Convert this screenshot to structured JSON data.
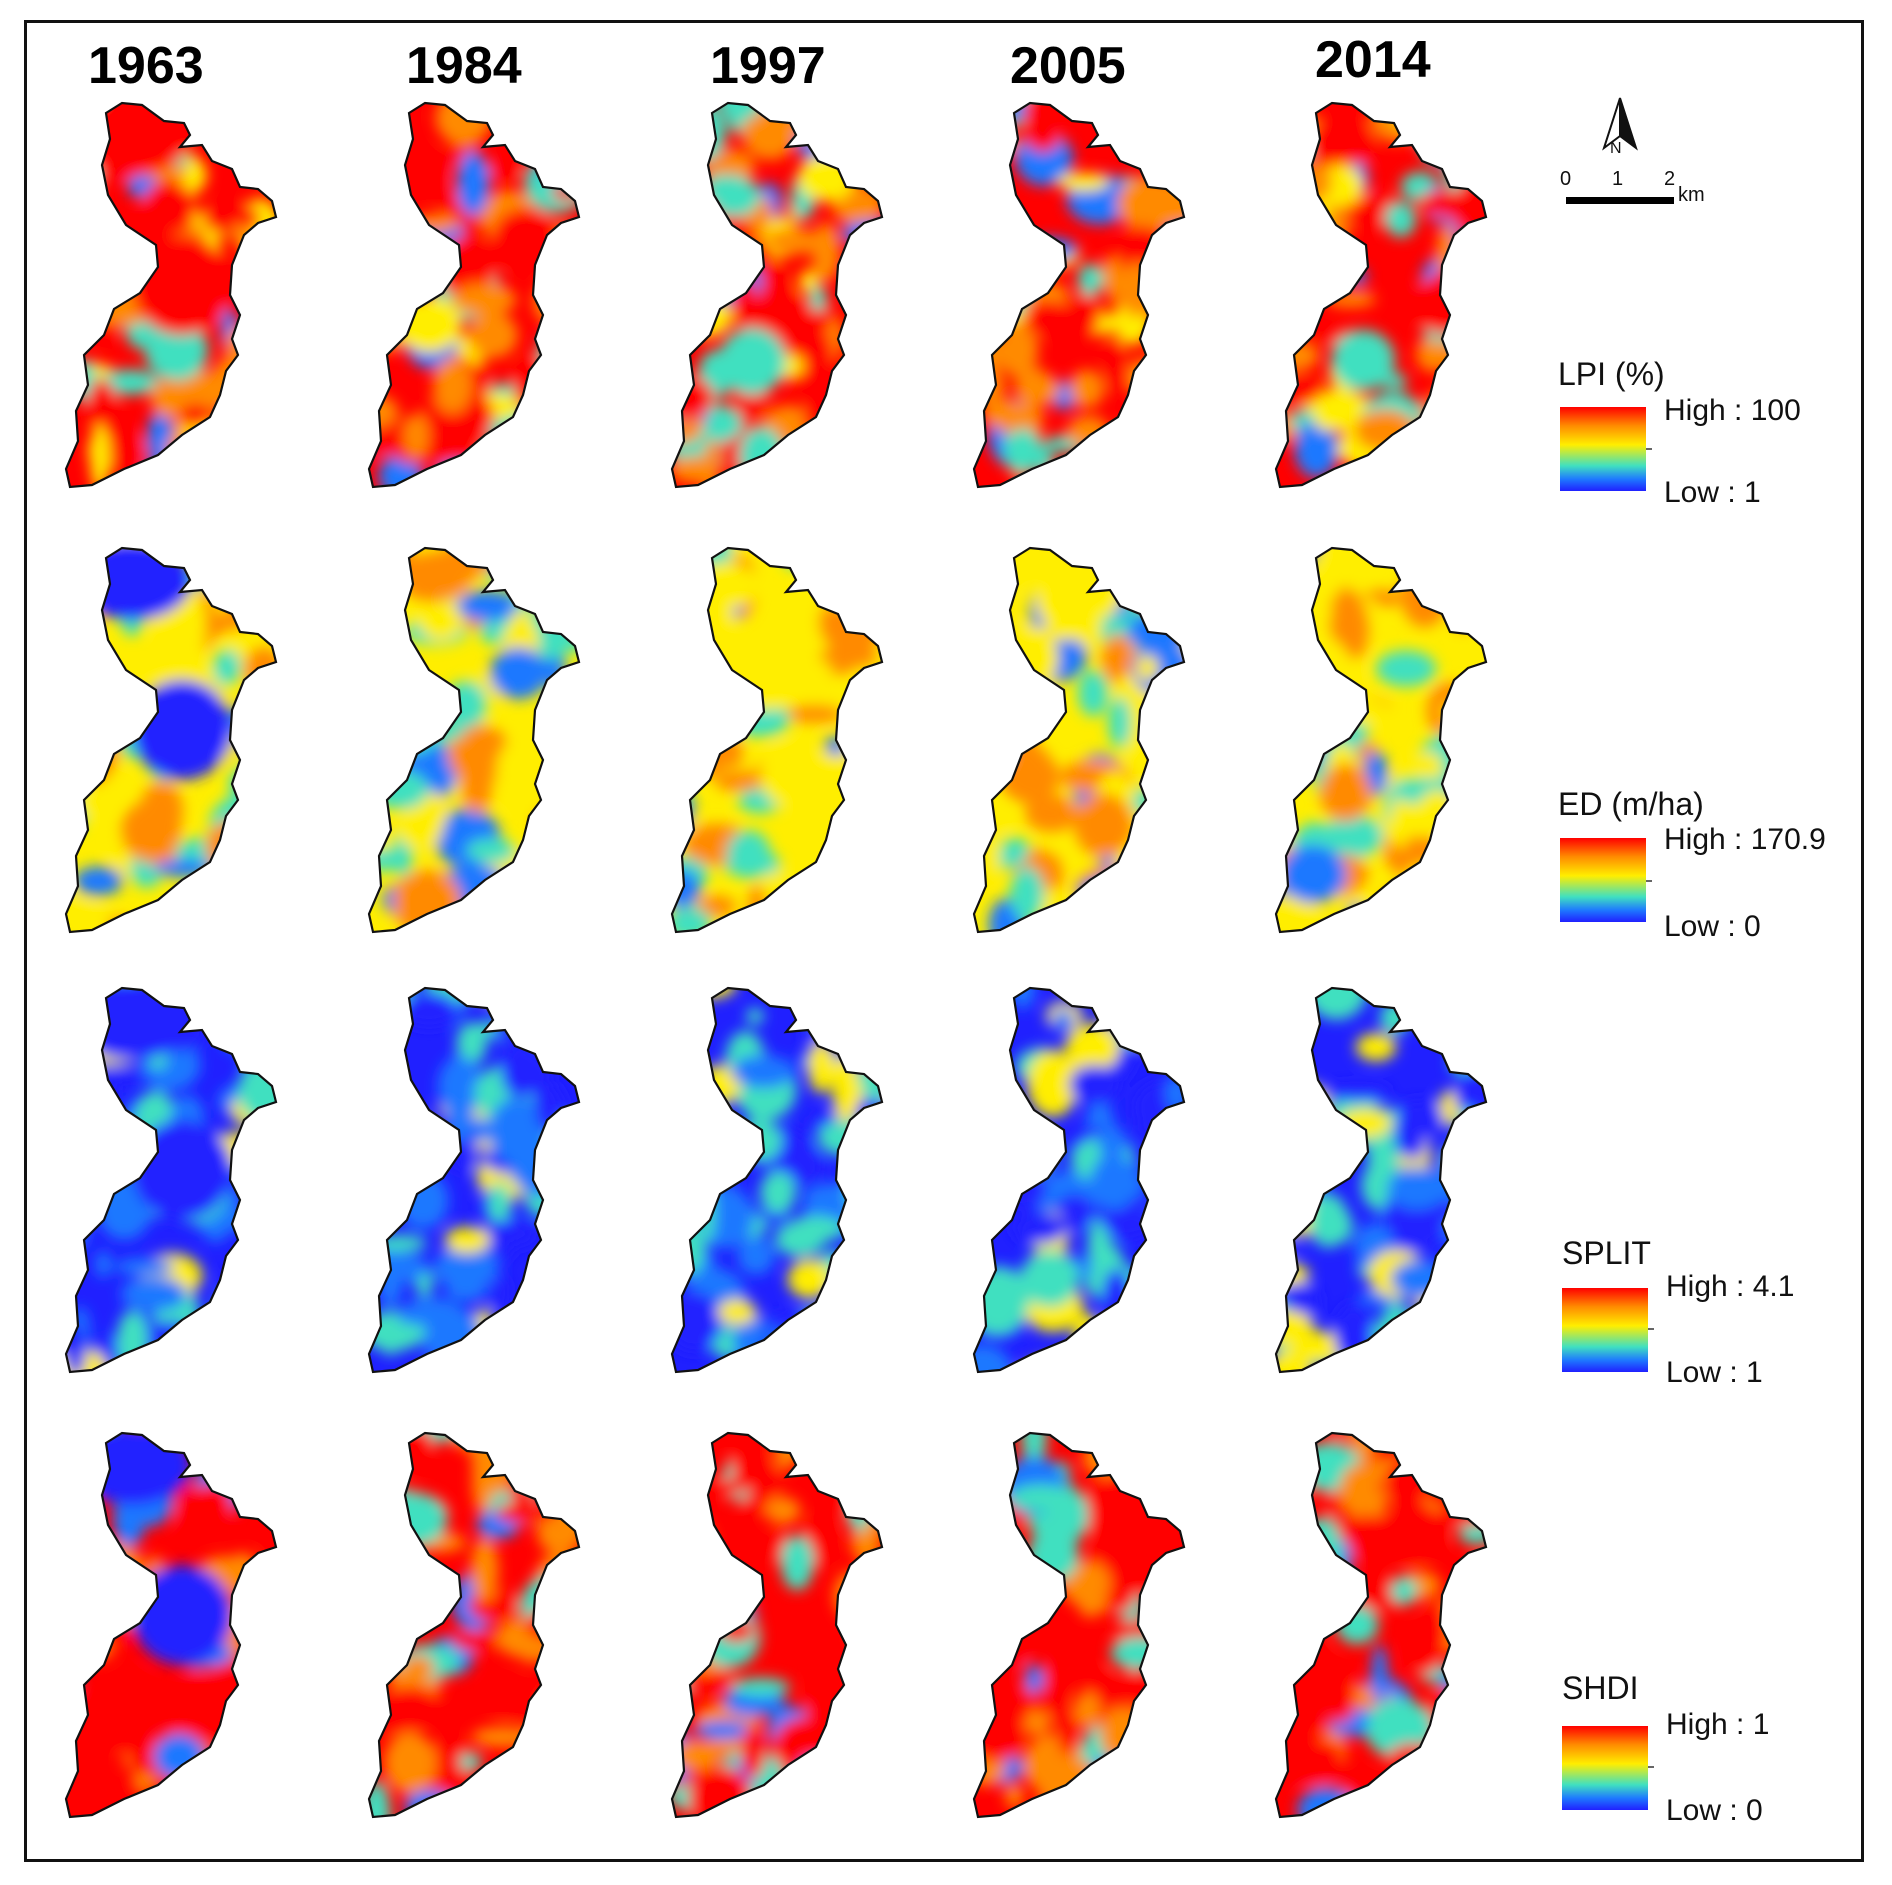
{
  "years": [
    "1963",
    "1984",
    "1997",
    "2005",
    "2014"
  ],
  "north_arrow": {
    "label": "N",
    "icon": "north-arrow-icon"
  },
  "scale_bar": {
    "ticks": [
      "0",
      "1",
      "2"
    ],
    "unit": "km"
  },
  "metrics": [
    {
      "title": "LPI (%)",
      "high": "High : 100",
      "low": "Low : 1"
    },
    {
      "title": "ED (m/ha)",
      "high": "High :  170.9",
      "low": "Low : 0"
    },
    {
      "title": "SPLIT",
      "high": "High :  4.1",
      "low": "Low : 1"
    },
    {
      "title": "SHDI",
      "high": "High : 1",
      "low": "Low : 0"
    }
  ],
  "color_ramp": {
    "high": "#ff0000",
    "upper": "#ff8a00",
    "middle": "#ffee00",
    "lower_mid": "#40e0c0",
    "lower": "#1e78ff",
    "low": "#2020ff"
  }
}
